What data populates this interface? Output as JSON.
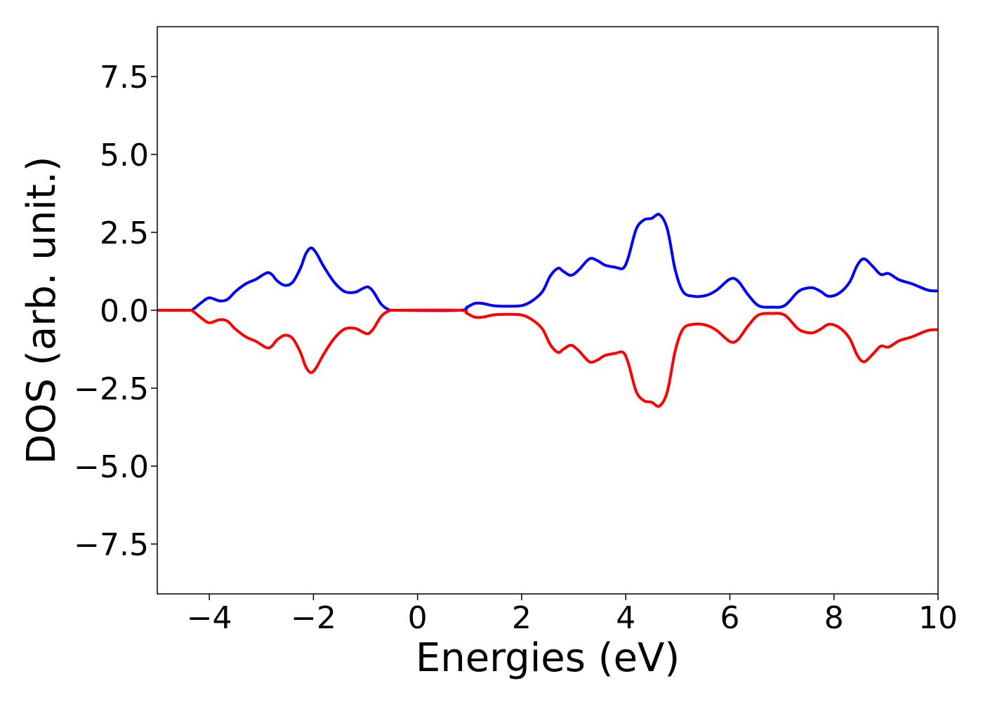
{
  "chart_data": {
    "type": "line",
    "title": "",
    "xlabel": "Energies (eV)",
    "ylabel": "DOS (arb. unit.)",
    "xlim": [
      -5,
      10
    ],
    "ylim": [
      -9.1,
      9.1
    ],
    "x_ticks": [
      -4,
      -2,
      0,
      2,
      4,
      6,
      8,
      10
    ],
    "x_tick_labels": [
      "−4",
      "−2",
      "0",
      "2",
      "4",
      "6",
      "8",
      "10"
    ],
    "y_ticks": [
      7.5,
      5.0,
      2.5,
      0.0,
      -2.5,
      -5.0,
      -7.5
    ],
    "y_tick_labels": [
      "7.5",
      "5.0",
      "2.5",
      "0.0",
      "−2.5",
      "−5.0",
      "−7.5"
    ],
    "grid": false,
    "legend": "none",
    "colors": {
      "spin_up": "#0000ff",
      "spin_down": "#ff0000",
      "axes": "#000000",
      "background": "#ffffff"
    },
    "series": [
      {
        "color": "#0000ff",
        "points": [
          [
            -5.0,
            0.0
          ],
          [
            -4.4,
            0.0
          ],
          [
            -4.3,
            0.05
          ],
          [
            -4.15,
            0.25
          ],
          [
            -4.0,
            0.4
          ],
          [
            -3.8,
            0.3
          ],
          [
            -3.65,
            0.35
          ],
          [
            -3.5,
            0.6
          ],
          [
            -3.3,
            0.85
          ],
          [
            -3.1,
            1.0
          ],
          [
            -2.9,
            1.2
          ],
          [
            -2.8,
            1.15
          ],
          [
            -2.7,
            0.95
          ],
          [
            -2.55,
            0.8
          ],
          [
            -2.4,
            0.9
          ],
          [
            -2.25,
            1.35
          ],
          [
            -2.15,
            1.8
          ],
          [
            -2.05,
            2.0
          ],
          [
            -1.95,
            1.85
          ],
          [
            -1.8,
            1.4
          ],
          [
            -1.6,
            0.9
          ],
          [
            -1.4,
            0.6
          ],
          [
            -1.2,
            0.58
          ],
          [
            -1.05,
            0.7
          ],
          [
            -0.95,
            0.75
          ],
          [
            -0.85,
            0.6
          ],
          [
            -0.7,
            0.2
          ],
          [
            -0.55,
            0.02
          ],
          [
            -0.4,
            0.0
          ],
          [
            0.8,
            0.0
          ],
          [
            0.95,
            0.1
          ],
          [
            1.1,
            0.22
          ],
          [
            1.25,
            0.22
          ],
          [
            1.45,
            0.15
          ],
          [
            1.7,
            0.13
          ],
          [
            2.0,
            0.15
          ],
          [
            2.2,
            0.3
          ],
          [
            2.4,
            0.6
          ],
          [
            2.55,
            1.1
          ],
          [
            2.7,
            1.35
          ],
          [
            2.8,
            1.25
          ],
          [
            2.95,
            1.12
          ],
          [
            3.1,
            1.3
          ],
          [
            3.3,
            1.65
          ],
          [
            3.45,
            1.6
          ],
          [
            3.6,
            1.45
          ],
          [
            3.8,
            1.38
          ],
          [
            3.95,
            1.35
          ],
          [
            4.05,
            1.7
          ],
          [
            4.2,
            2.6
          ],
          [
            4.35,
            2.9
          ],
          [
            4.5,
            2.95
          ],
          [
            4.65,
            3.07
          ],
          [
            4.8,
            2.6
          ],
          [
            4.95,
            1.3
          ],
          [
            5.1,
            0.6
          ],
          [
            5.3,
            0.45
          ],
          [
            5.55,
            0.48
          ],
          [
            5.75,
            0.65
          ],
          [
            6.0,
            1.0
          ],
          [
            6.15,
            0.95
          ],
          [
            6.35,
            0.5
          ],
          [
            6.55,
            0.15
          ],
          [
            6.8,
            0.1
          ],
          [
            7.05,
            0.15
          ],
          [
            7.3,
            0.58
          ],
          [
            7.45,
            0.7
          ],
          [
            7.6,
            0.72
          ],
          [
            7.75,
            0.6
          ],
          [
            7.9,
            0.45
          ],
          [
            8.1,
            0.55
          ],
          [
            8.3,
            0.9
          ],
          [
            8.45,
            1.45
          ],
          [
            8.58,
            1.65
          ],
          [
            8.75,
            1.4
          ],
          [
            8.9,
            1.15
          ],
          [
            9.05,
            1.18
          ],
          [
            9.25,
            0.98
          ],
          [
            9.5,
            0.85
          ],
          [
            9.8,
            0.65
          ],
          [
            10.0,
            0.62
          ]
        ]
      },
      {
        "color": "#ff0000",
        "points": [
          [
            -5.0,
            0.0
          ],
          [
            -4.4,
            0.0
          ],
          [
            -4.3,
            -0.05
          ],
          [
            -4.15,
            -0.25
          ],
          [
            -4.0,
            -0.4
          ],
          [
            -3.8,
            -0.3
          ],
          [
            -3.65,
            -0.35
          ],
          [
            -3.5,
            -0.6
          ],
          [
            -3.3,
            -0.85
          ],
          [
            -3.1,
            -1.0
          ],
          [
            -2.9,
            -1.2
          ],
          [
            -2.8,
            -1.15
          ],
          [
            -2.7,
            -0.95
          ],
          [
            -2.55,
            -0.8
          ],
          [
            -2.4,
            -0.9
          ],
          [
            -2.25,
            -1.35
          ],
          [
            -2.15,
            -1.8
          ],
          [
            -2.05,
            -2.0
          ],
          [
            -1.95,
            -1.85
          ],
          [
            -1.8,
            -1.4
          ],
          [
            -1.6,
            -0.9
          ],
          [
            -1.4,
            -0.6
          ],
          [
            -1.2,
            -0.58
          ],
          [
            -1.05,
            -0.7
          ],
          [
            -0.95,
            -0.75
          ],
          [
            -0.85,
            -0.6
          ],
          [
            -0.7,
            -0.2
          ],
          [
            -0.55,
            -0.02
          ],
          [
            -0.4,
            0.0
          ],
          [
            0.8,
            0.0
          ],
          [
            0.95,
            -0.1
          ],
          [
            1.1,
            -0.22
          ],
          [
            1.25,
            -0.22
          ],
          [
            1.45,
            -0.15
          ],
          [
            1.7,
            -0.13
          ],
          [
            2.0,
            -0.15
          ],
          [
            2.2,
            -0.3
          ],
          [
            2.4,
            -0.6
          ],
          [
            2.55,
            -1.1
          ],
          [
            2.7,
            -1.35
          ],
          [
            2.8,
            -1.25
          ],
          [
            2.95,
            -1.12
          ],
          [
            3.1,
            -1.3
          ],
          [
            3.3,
            -1.65
          ],
          [
            3.45,
            -1.6
          ],
          [
            3.6,
            -1.45
          ],
          [
            3.8,
            -1.38
          ],
          [
            3.95,
            -1.35
          ],
          [
            4.05,
            -1.7
          ],
          [
            4.2,
            -2.6
          ],
          [
            4.35,
            -2.9
          ],
          [
            4.5,
            -2.95
          ],
          [
            4.65,
            -3.07
          ],
          [
            4.8,
            -2.6
          ],
          [
            4.95,
            -1.3
          ],
          [
            5.1,
            -0.6
          ],
          [
            5.3,
            -0.45
          ],
          [
            5.55,
            -0.48
          ],
          [
            5.75,
            -0.65
          ],
          [
            6.0,
            -1.0
          ],
          [
            6.15,
            -0.95
          ],
          [
            6.35,
            -0.5
          ],
          [
            6.55,
            -0.15
          ],
          [
            6.8,
            -0.1
          ],
          [
            7.05,
            -0.15
          ],
          [
            7.3,
            -0.58
          ],
          [
            7.45,
            -0.7
          ],
          [
            7.6,
            -0.72
          ],
          [
            7.75,
            -0.6
          ],
          [
            7.9,
            -0.45
          ],
          [
            8.1,
            -0.55
          ],
          [
            8.3,
            -0.9
          ],
          [
            8.45,
            -1.45
          ],
          [
            8.58,
            -1.65
          ],
          [
            8.75,
            -1.4
          ],
          [
            8.9,
            -1.15
          ],
          [
            9.05,
            -1.18
          ],
          [
            9.25,
            -0.98
          ],
          [
            9.5,
            -0.85
          ],
          [
            9.8,
            -0.65
          ],
          [
            10.0,
            -0.62
          ]
        ]
      }
    ]
  }
}
